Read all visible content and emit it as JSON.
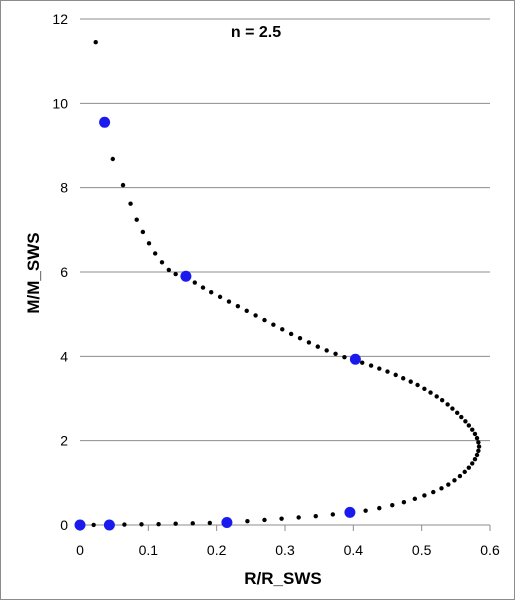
{
  "chart_data": {
    "type": "scatter",
    "title": "",
    "annotation": "n = 2.5",
    "xlabel": "R/R_SWS",
    "ylabel": "M/M_SWS",
    "xlim": [
      0,
      0.6
    ],
    "ylim": [
      0,
      12
    ],
    "x_ticks": [
      "0",
      "0.1",
      "0.2",
      "0.3",
      "0.4",
      "0.5",
      "0.6"
    ],
    "y_ticks": [
      "0",
      "2",
      "4",
      "6",
      "8",
      "10",
      "12"
    ],
    "grid": "horizontal",
    "legend": "none",
    "colors": {
      "small_points": "#000000",
      "highlight_points": "#1a1aee",
      "gridline": "#8c8c8c"
    },
    "series": [
      {
        "marker": "small-black-dot",
        "points": [
          [
            0.023,
            11.45
          ],
          [
            0.036,
            9.55
          ],
          [
            0.048,
            8.68
          ],
          [
            0.063,
            8.06
          ],
          [
            0.074,
            7.62
          ],
          [
            0.083,
            7.24
          ],
          [
            0.092,
            6.95
          ],
          [
            0.101,
            6.68
          ],
          [
            0.11,
            6.44
          ],
          [
            0.12,
            6.23
          ],
          [
            0.13,
            6.05
          ],
          [
            0.14,
            5.95
          ],
          [
            0.155,
            5.87
          ],
          [
            0.168,
            5.75
          ],
          [
            0.18,
            5.63
          ],
          [
            0.192,
            5.52
          ],
          [
            0.205,
            5.41
          ],
          [
            0.218,
            5.3
          ],
          [
            0.231,
            5.19
          ],
          [
            0.244,
            5.08
          ],
          [
            0.257,
            4.97
          ],
          [
            0.27,
            4.86
          ],
          [
            0.283,
            4.75
          ],
          [
            0.296,
            4.64
          ],
          [
            0.309,
            4.53
          ],
          [
            0.322,
            4.43
          ],
          [
            0.335,
            4.33
          ],
          [
            0.348,
            4.23
          ],
          [
            0.361,
            4.14
          ],
          [
            0.374,
            4.06
          ],
          [
            0.387,
            3.98
          ],
          [
            0.4,
            3.92
          ],
          [
            0.413,
            3.85
          ],
          [
            0.426,
            3.78
          ],
          [
            0.438,
            3.71
          ],
          [
            0.45,
            3.64
          ],
          [
            0.462,
            3.56
          ],
          [
            0.473,
            3.48
          ],
          [
            0.484,
            3.4
          ],
          [
            0.494,
            3.32
          ],
          [
            0.504,
            3.23
          ],
          [
            0.513,
            3.14
          ],
          [
            0.522,
            3.05
          ],
          [
            0.53,
            2.96
          ],
          [
            0.538,
            2.86
          ],
          [
            0.545,
            2.76
          ],
          [
            0.552,
            2.66
          ],
          [
            0.558,
            2.56
          ],
          [
            0.564,
            2.46
          ],
          [
            0.569,
            2.36
          ],
          [
            0.574,
            2.26
          ],
          [
            0.578,
            2.16
          ],
          [
            0.581,
            2.06
          ],
          [
            0.583,
            1.96
          ],
          [
            0.584,
            1.86
          ],
          [
            0.583,
            1.76
          ],
          [
            0.581,
            1.66
          ],
          [
            0.578,
            1.56
          ],
          [
            0.574,
            1.46
          ],
          [
            0.569,
            1.36
          ],
          [
            0.563,
            1.26
          ],
          [
            0.556,
            1.16
          ],
          [
            0.548,
            1.06
          ],
          [
            0.539,
            0.96
          ],
          [
            0.529,
            0.87
          ],
          [
            0.517,
            0.78
          ],
          [
            0.504,
            0.7
          ],
          [
            0.49,
            0.62
          ],
          [
            0.474,
            0.54
          ],
          [
            0.457,
            0.47
          ],
          [
            0.438,
            0.4
          ],
          [
            0.418,
            0.34
          ],
          [
            0.395,
            0.3
          ],
          [
            0.37,
            0.25
          ],
          [
            0.345,
            0.21
          ],
          [
            0.32,
            0.18
          ],
          [
            0.295,
            0.15
          ],
          [
            0.27,
            0.12
          ],
          [
            0.245,
            0.09
          ],
          [
            0.215,
            0.07
          ],
          [
            0.19,
            0.05
          ],
          [
            0.165,
            0.04
          ],
          [
            0.14,
            0.03
          ],
          [
            0.115,
            0.02
          ],
          [
            0.09,
            0.015
          ],
          [
            0.065,
            0.01
          ],
          [
            0.043,
            0.005
          ],
          [
            0.02,
            0.002
          ],
          [
            0.0,
            0.0
          ]
        ]
      },
      {
        "marker": "large-blue-dot",
        "points": [
          [
            0.036,
            9.55
          ],
          [
            0.155,
            5.9
          ],
          [
            0.403,
            3.93
          ],
          [
            0.395,
            0.3
          ],
          [
            0.215,
            0.06
          ],
          [
            0.043,
            0.0
          ],
          [
            0.0,
            0.0
          ]
        ]
      }
    ]
  }
}
